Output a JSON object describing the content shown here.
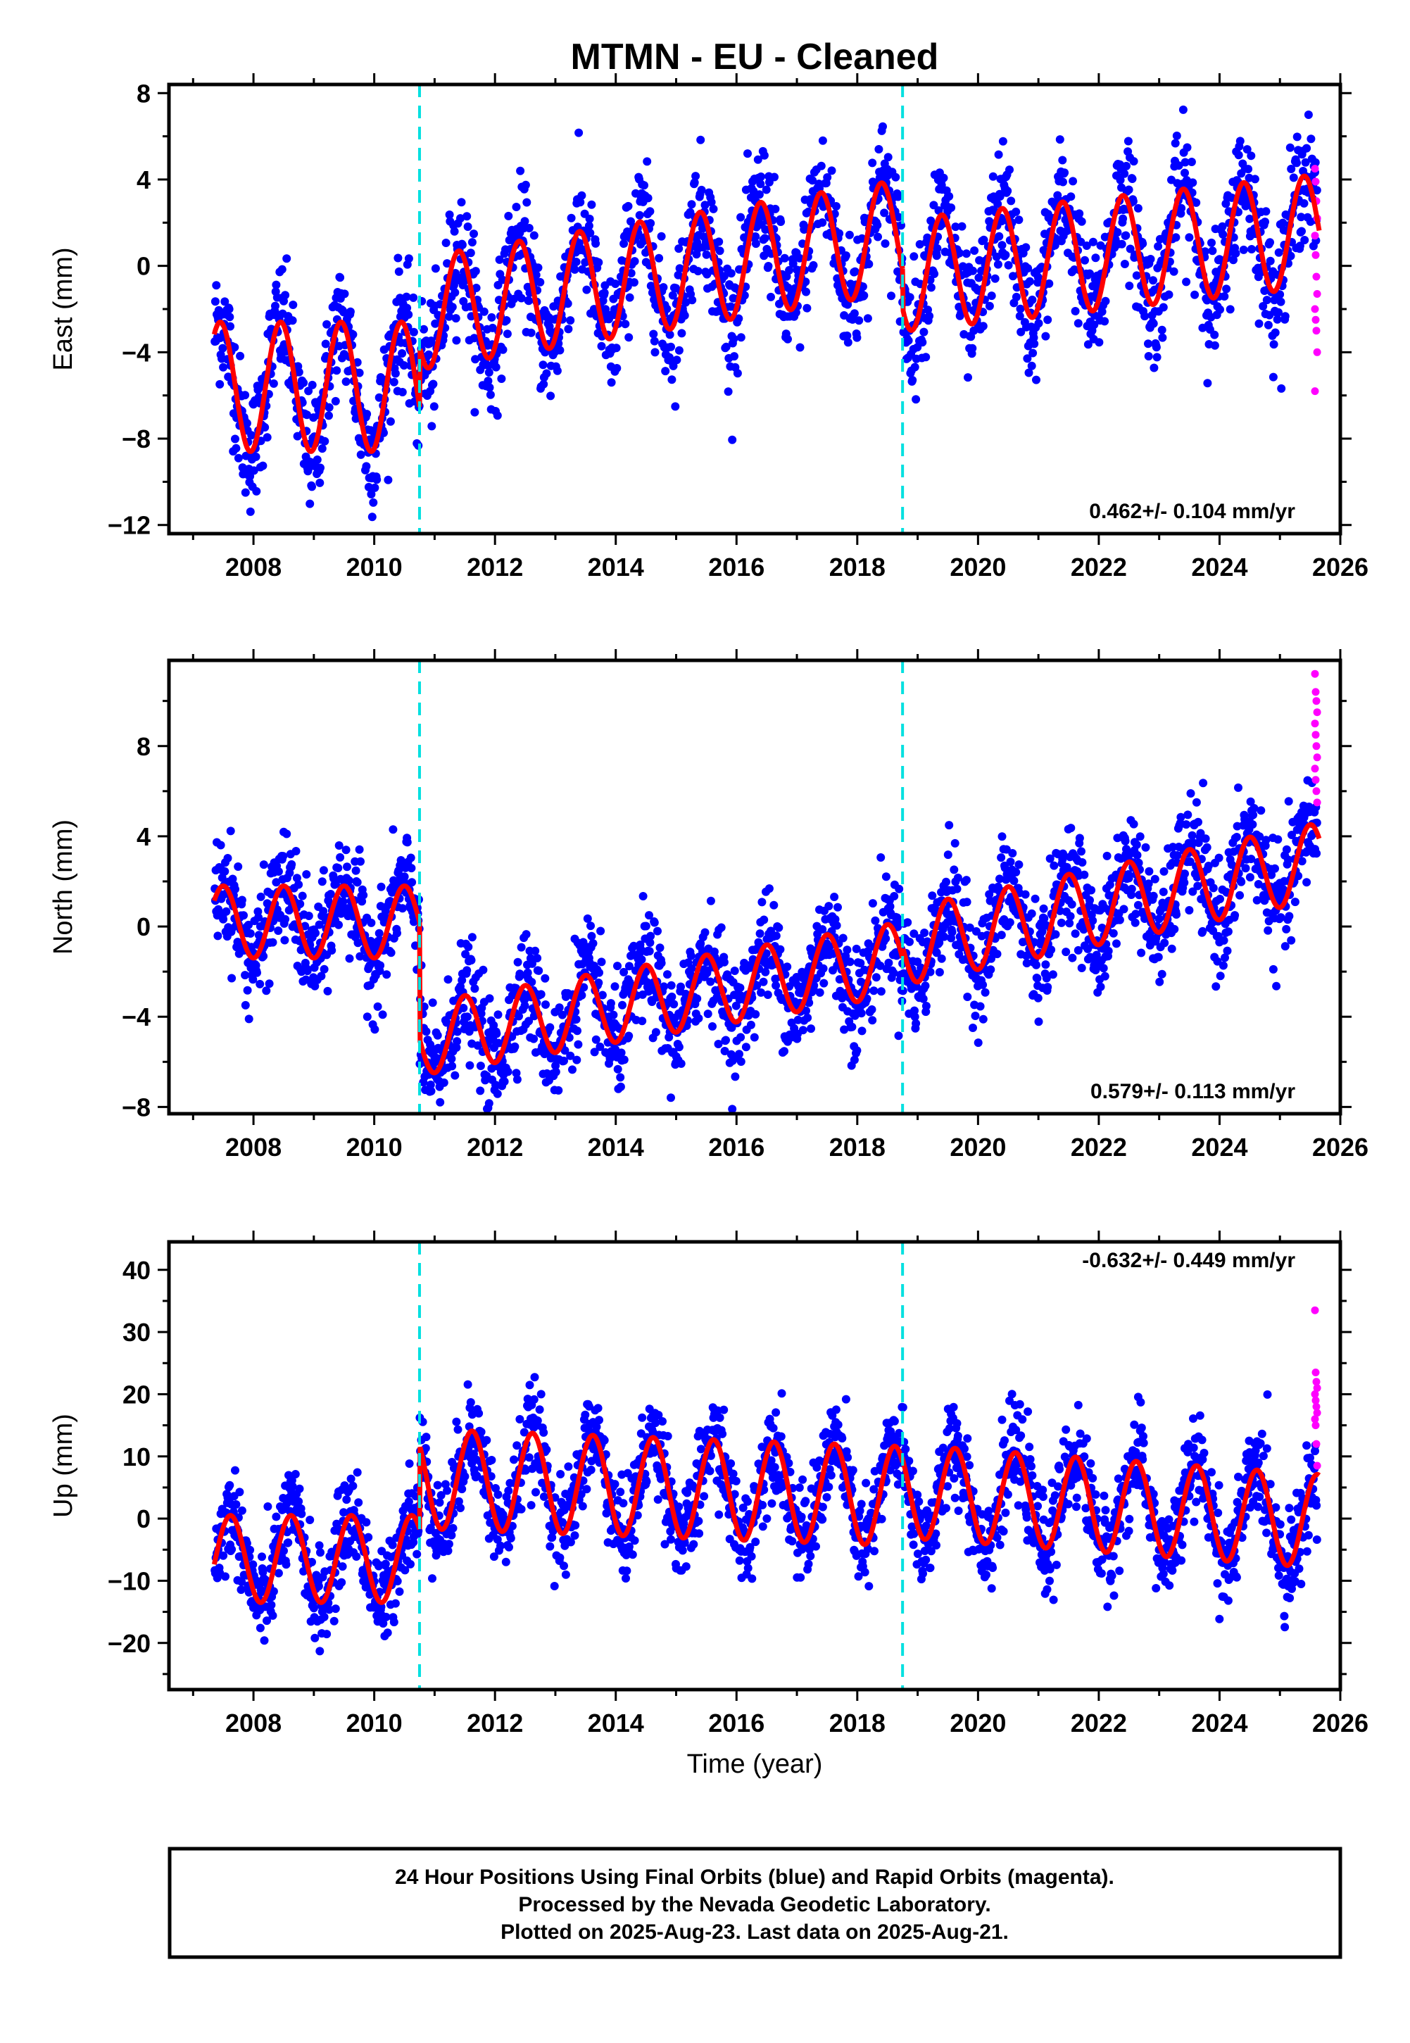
{
  "chart_data": {
    "type": "scatter",
    "title": "MTMN  - EU - Cleaned",
    "xlabel": "Time (year)",
    "xlim": [
      2006.6,
      2026.0
    ],
    "xticks": [
      2008,
      2010,
      2012,
      2014,
      2016,
      2018,
      2020,
      2022,
      2024,
      2026
    ],
    "equipment_change_epochs": [
      2010.75,
      2018.75
    ],
    "colors": {
      "final": "#0000ff",
      "rapid": "#ff00ff",
      "model": "#ff0000",
      "breaks": "#00e0e0"
    },
    "panels": [
      {
        "name": "East",
        "ylabel": "East (mm)",
        "ylim": [
          -12.4,
          8.4
        ],
        "yticks": [
          -12,
          -8,
          -4,
          0,
          4,
          8
        ],
        "rate_label": "0.462+/- 0.104 mm/yr",
        "rate_position": "bottom-right",
        "model_segments": [
          {
            "start": 2007.35,
            "end": 2010.75,
            "offset": -5.6,
            "amplitude": 3.0,
            "phase_peak": 0.45
          },
          {
            "start": 2010.75,
            "end": 2018.75,
            "offset": -0.4,
            "rate": 0.45,
            "amplitude": 2.6,
            "phase_peak": 0.4
          },
          {
            "start": 2018.75,
            "end": 2025.65,
            "offset": 0.6,
            "rate": 0.3,
            "amplitude": 2.6,
            "phase_peak": 0.4
          }
        ],
        "scatter_sigma": 1.4,
        "rapid_values": [
          4.5,
          3.9,
          3.0,
          2.2,
          1.4,
          0.5,
          -0.5,
          -1.3,
          -2.0,
          -2.5,
          -3.0,
          -4.0,
          -5.8
        ]
      },
      {
        "name": "North",
        "ylabel": "North (mm)",
        "ylim": [
          -8.3,
          11.8
        ],
        "yticks": [
          -8,
          -4,
          0,
          4,
          8
        ],
        "rate_label": "0.579+/- 0.113 mm/yr",
        "rate_position": "bottom-right",
        "model_segments": [
          {
            "start": 2007.35,
            "end": 2010.75,
            "offset": 0.2,
            "amplitude": 1.6,
            "phase_peak": 0.5
          },
          {
            "start": 2010.75,
            "end": 2018.75,
            "offset": -3.2,
            "rate": 0.45,
            "amplitude": 1.6,
            "phase_peak": 0.5
          },
          {
            "start": 2018.75,
            "end": 2025.65,
            "offset": 1.0,
            "rate": 0.55,
            "amplitude": 1.7,
            "phase_peak": 0.5
          }
        ],
        "scatter_sigma": 1.2,
        "rapid_values": [
          11.2,
          10.4,
          10.0,
          9.5,
          9.0,
          8.5,
          8.0,
          7.5,
          7.0,
          6.5,
          6.0,
          5.5
        ]
      },
      {
        "name": "Up",
        "ylabel": "Up (mm)",
        "ylim": [
          -27.5,
          44.5
        ],
        "yticks": [
          -20,
          -10,
          0,
          10,
          20,
          30,
          40
        ],
        "rate_label": "-0.632+/- 0.449 mm/yr",
        "rate_position": "top-right",
        "model_segments": [
          {
            "start": 2007.35,
            "end": 2010.75,
            "offset": -6.5,
            "amplitude": 7.0,
            "phase_peak": 0.62
          },
          {
            "start": 2010.75,
            "end": 2018.75,
            "offset": 5.0,
            "rate": -0.35,
            "amplitude": 8.0,
            "phase_peak": 0.62
          },
          {
            "start": 2018.75,
            "end": 2025.65,
            "offset": 2.0,
            "rate": -0.7,
            "amplitude": 7.5,
            "phase_peak": 0.62
          }
        ],
        "scatter_sigma": 3.8,
        "rapid_values": [
          33.5,
          23.5,
          22.0,
          21.0,
          20.0,
          19.0,
          18.0,
          17.0,
          16.0,
          15.0,
          12.0,
          8.5
        ]
      }
    ]
  },
  "footer": {
    "line1": "24 Hour Positions Using Final Orbits (blue) and Rapid Orbits (magenta).",
    "line2": "Processed by the Nevada Geodetic Laboratory.",
    "line3": "Plotted on 2025-Aug-23. Last data on 2025-Aug-21."
  }
}
